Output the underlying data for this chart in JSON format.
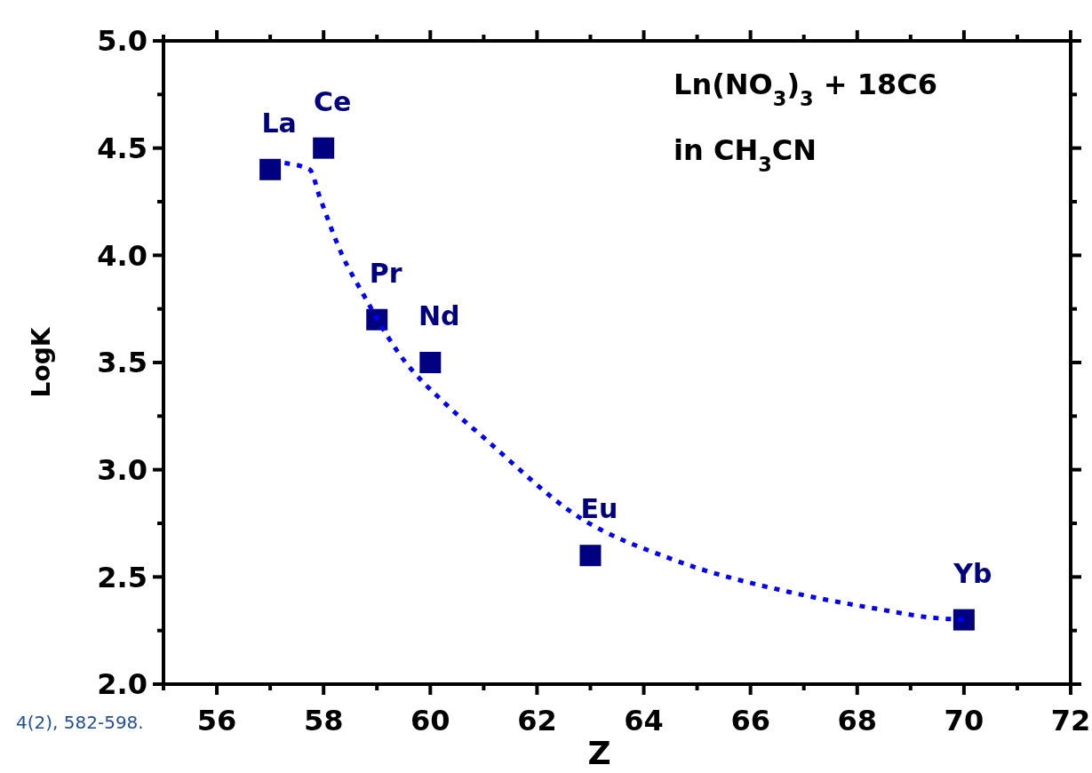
{
  "chart_data": {
    "type": "scatter",
    "xlabel": "Z",
    "ylabel": "LogK",
    "xlim": [
      55,
      72
    ],
    "ylim": [
      2,
      5
    ],
    "xticks": [
      {
        "value": 55,
        "label": null
      },
      56,
      {
        "value": 57,
        "label": null
      },
      58,
      {
        "value": 59,
        "label": null
      },
      60,
      {
        "value": 61,
        "label": null
      },
      62,
      {
        "value": 63,
        "label": null
      },
      64,
      {
        "value": 65,
        "label": null
      },
      66,
      {
        "value": 67,
        "label": null
      },
      68,
      {
        "value": 69,
        "label": null
      },
      70,
      {
        "value": 71,
        "label": null
      },
      72
    ],
    "yticks": [
      {
        "value": 2,
        "label": "2.0"
      },
      {
        "value": 2.25,
        "label": null
      },
      {
        "value": 2.5,
        "label": "2.5"
      },
      {
        "value": 2.75,
        "label": null
      },
      {
        "value": 3,
        "label": "3.0"
      },
      {
        "value": 3.25,
        "label": null
      },
      {
        "value": 3.5,
        "label": "3.5"
      },
      {
        "value": 3.75,
        "label": null
      },
      {
        "value": 4,
        "label": "4.0"
      },
      {
        "value": 4.25,
        "label": null
      },
      {
        "value": 4.5,
        "label": "4.5"
      },
      {
        "value": 4.75,
        "label": null
      },
      {
        "value": 5,
        "label": "5.0"
      }
    ],
    "marker": "square",
    "grid": false,
    "series": [
      {
        "type": "scatter",
        "color": "#000080",
        "x": [
          57,
          58,
          59,
          60,
          63,
          70
        ],
        "values": [
          4.4,
          4.5,
          3.7,
          3.5,
          2.6,
          2.3
        ]
      },
      {
        "type": "line",
        "color": "#0000ff",
        "marker": "none",
        "line_style": "dotted",
        "x": [
          57.27,
          57.74,
          57.93,
          58.35,
          58.74,
          59.39,
          60.36,
          61.0,
          62.78,
          64.56,
          66.72,
          68.4,
          69.4,
          70
        ],
        "values": [
          4.43,
          4.4,
          4.27,
          4.0,
          3.82,
          3.55,
          3.29,
          3.15,
          2.78,
          2.58,
          2.43,
          2.35,
          2.31,
          2.3
        ]
      }
    ],
    "annotations": [
      {
        "text": "La",
        "x": 57,
        "y": 4.4
      },
      {
        "text": "Ce",
        "x": 58,
        "y": 4.5
      },
      {
        "text": "Pr",
        "x": 59,
        "y": 3.7
      },
      {
        "text": "Nd",
        "x": 60,
        "y": 3.5
      },
      {
        "text": "Eu",
        "x": 63,
        "y": 2.6
      },
      {
        "text": "Yb",
        "x": 70,
        "y": 2.3
      },
      "Ln(NO$_{3}$)$_{3}$ + 18C6",
      "in CH$_{3}$CN",
      "4(2), 582-598."
    ]
  }
}
